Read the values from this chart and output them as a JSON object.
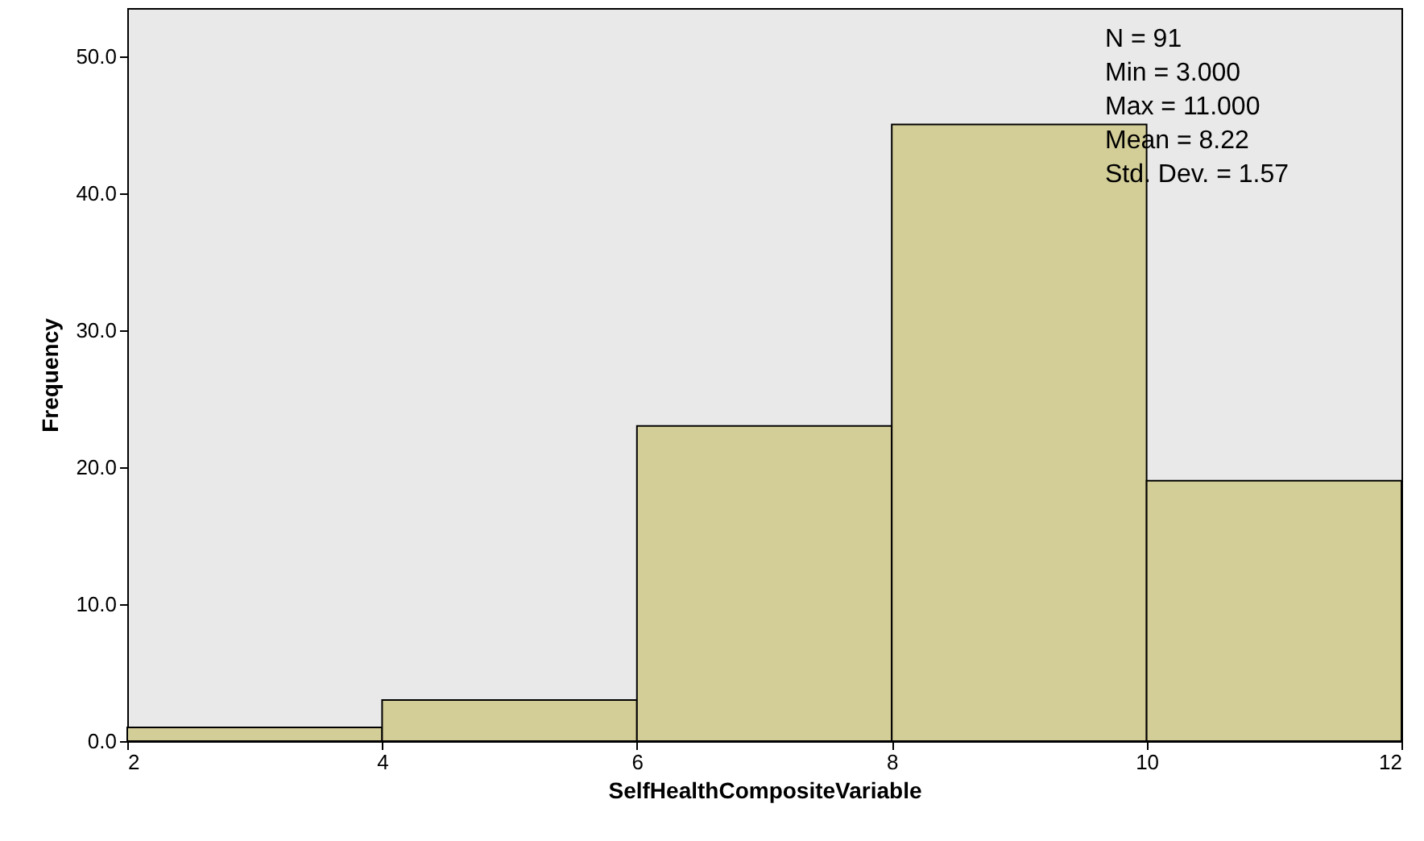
{
  "chart_data": {
    "type": "histogram",
    "xlabel": "SelfHealthCompositeVariable",
    "ylabel": "Frequency",
    "bins": [
      2,
      4,
      6,
      8,
      10,
      12
    ],
    "values": [
      1,
      3,
      23,
      45,
      19
    ],
    "color": "#d3cd98",
    "xlim": [
      2,
      12
    ],
    "xticks": [
      2,
      4,
      6,
      8,
      10,
      12
    ],
    "ylim": [
      0,
      53.5
    ],
    "yticks": [
      {
        "value": 0,
        "label": "0.0"
      },
      {
        "value": 10,
        "label": "10.0"
      },
      {
        "value": 20,
        "label": "20.0"
      },
      {
        "value": 30,
        "label": "30.0"
      },
      {
        "value": 40,
        "label": "40.0"
      },
      {
        "value": 50,
        "label": "50.0"
      }
    ],
    "annotations": [
      "N = 91",
      "Min = 3.000",
      "Max = 11.000",
      "Mean = 8.22",
      "Std. Dev. = 1.57"
    ]
  }
}
